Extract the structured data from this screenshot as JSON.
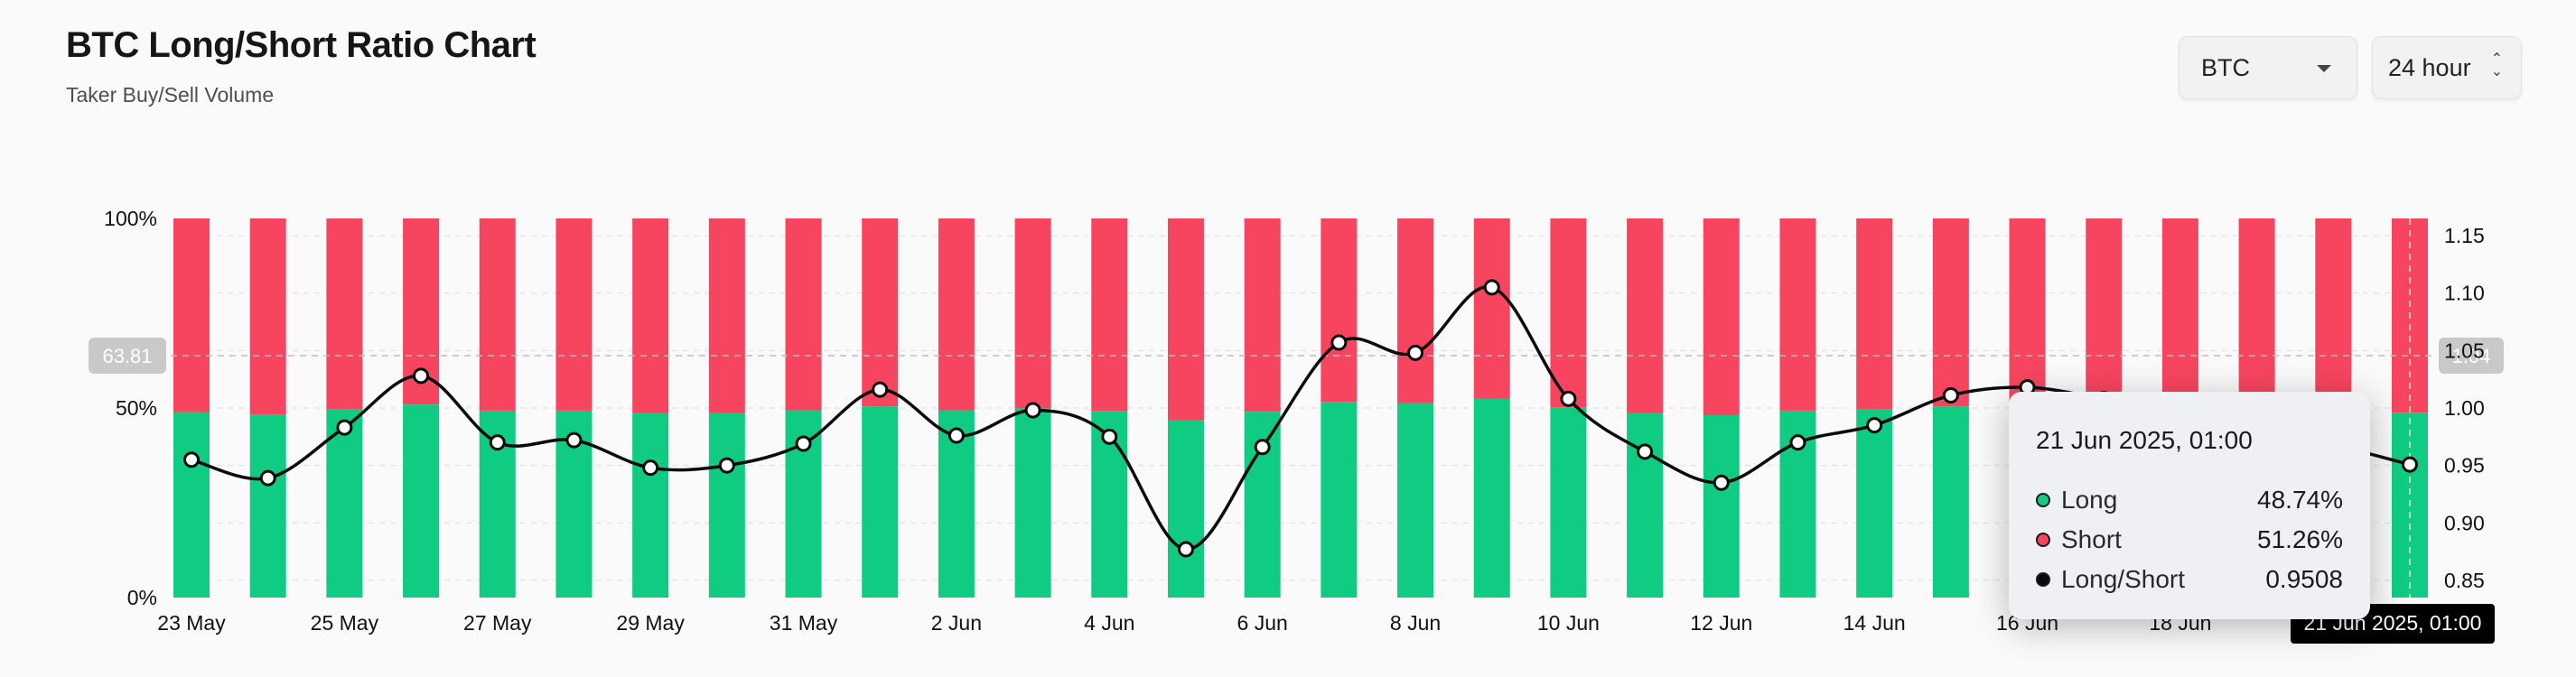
{
  "header": {
    "title": "BTC Long/Short Ratio Chart",
    "subtitle": "Taker Buy/Sell Volume"
  },
  "controls": {
    "coin_select": "BTC",
    "period_select": "24 hour"
  },
  "colors": {
    "long": "#10cb82",
    "short": "#f7455f",
    "ratio_line": "#0b0b0b"
  },
  "chart_data": {
    "type": "bar",
    "stacked": true,
    "left_axis": {
      "ticks": [
        "0%",
        "50%",
        "100%"
      ],
      "range": [
        0,
        100
      ]
    },
    "right_axis": {
      "ticks": [
        "0.85",
        "0.90",
        "0.95",
        "1.00",
        "1.05",
        "1.10",
        "1.15"
      ],
      "range": [
        0.835,
        1.165
      ]
    },
    "x_tick_labels": [
      "23 May",
      "25 May",
      "27 May",
      "29 May",
      "31 May",
      "2 Jun",
      "4 Jun",
      "6 Jun",
      "8 Jun",
      "10 Jun",
      "12 Jun",
      "14 Jun",
      "16 Jun",
      "18 Jun",
      "21 Jun 2025, 01:00"
    ],
    "categories": [
      "23 May",
      "24 May",
      "25 May",
      "26 May",
      "27 May",
      "28 May",
      "29 May",
      "30 May",
      "31 May",
      "1 Jun",
      "2 Jun",
      "3 Jun",
      "4 Jun",
      "5 Jun",
      "6 Jun",
      "7 Jun",
      "8 Jun",
      "9 Jun",
      "10 Jun",
      "11 Jun",
      "12 Jun",
      "13 Jun",
      "14 Jun",
      "15 Jun",
      "16 Jun",
      "17 Jun",
      "18 Jun",
      "19 Jun",
      "20 Jun",
      "21 Jun"
    ],
    "series": [
      {
        "name": "Long",
        "values": [
          48.9,
          48.3,
          49.6,
          50.9,
          49.3,
          49.3,
          48.6,
          48.7,
          49.4,
          50.4,
          49.4,
          49.9,
          49.2,
          46.9,
          49.0,
          51.6,
          51.3,
          52.5,
          50.2,
          48.7,
          48.1,
          49.3,
          49.6,
          50.4,
          50.6,
          50.2,
          49.9,
          49.5,
          49.2,
          48.74
        ]
      },
      {
        "name": "Short",
        "values": [
          51.1,
          51.7,
          50.4,
          49.1,
          50.7,
          50.7,
          51.4,
          51.3,
          50.6,
          49.6,
          50.6,
          50.1,
          50.8,
          53.1,
          51.0,
          48.4,
          48.7,
          47.5,
          49.8,
          51.3,
          51.9,
          50.7,
          50.4,
          49.6,
          49.4,
          49.8,
          50.1,
          50.5,
          50.8,
          51.26
        ]
      },
      {
        "name": "Long/Short",
        "values": [
          0.955,
          0.939,
          0.983,
          1.028,
          0.97,
          0.972,
          0.948,
          0.95,
          0.969,
          1.016,
          0.976,
          0.998,
          0.975,
          0.877,
          0.966,
          1.057,
          1.048,
          1.105,
          1.008,
          0.962,
          0.935,
          0.97,
          0.985,
          1.011,
          1.018,
          1.008,
          0.998,
          0.982,
          0.968,
          0.9508
        ]
      }
    ],
    "crosshair": {
      "left_label": "63.81",
      "right_label": "1.04",
      "left_value": 63.81
    },
    "tooltip": {
      "date": "21 Jun 2025, 01:00",
      "rows": [
        {
          "name": "Long",
          "value": "48.74%"
        },
        {
          "name": "Short",
          "value": "51.26%"
        },
        {
          "name": "Long/Short",
          "value": "0.9508"
        }
      ]
    }
  }
}
